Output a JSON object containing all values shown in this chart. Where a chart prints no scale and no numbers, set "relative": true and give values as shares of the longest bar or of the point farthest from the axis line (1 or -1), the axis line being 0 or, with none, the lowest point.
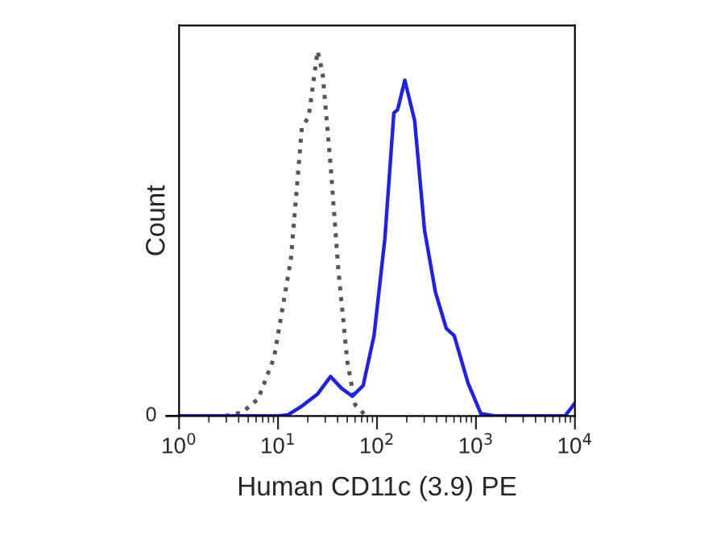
{
  "chart_data": {
    "type": "line",
    "relative": true,
    "xlabel": "Human CD11c (3.9) PE",
    "ylabel": "Count",
    "log": "x",
    "xlim": [
      1,
      10000
    ],
    "xticks": [
      {
        "value": 1,
        "label": "10$^{0}$"
      },
      {
        "value": 10,
        "label": "10$^{1}$"
      },
      {
        "value": 100,
        "label": "10$^{2}$"
      },
      {
        "value": 1000,
        "label": "10$^{3}$"
      },
      {
        "value": 10000,
        "label": "10$^{4}$"
      }
    ],
    "annotations": [
      {
        "text": "0",
        "x": 1,
        "y": 0
      }
    ],
    "grid": false,
    "legend": false,
    "series": [
      {
        "color": "#555555",
        "line_style": "dotted",
        "x": [
          2.95,
          4.37,
          6.31,
          9.12,
          13.5,
          17.4,
          20.4,
          25.1,
          28.2,
          33.9,
          40.7,
          50.1,
          60.3,
          77.6
        ],
        "values": [
          0,
          0.01,
          0.047,
          0.16,
          0.43,
          0.79,
          0.82,
          1.0,
          0.94,
          0.69,
          0.4,
          0.15,
          0.03,
          0
        ]
      },
      {
        "color": "#2222dd",
        "line_style": "solid",
        "x": [
          1,
          10,
          12.6,
          17.0,
          25.1,
          33.9,
          43.7,
          56.2,
          72.4,
          93.3,
          120,
          148,
          162,
          191,
          240,
          302,
          389,
          501,
          603,
          832,
          1122,
          1549,
          7943,
          10000
        ],
        "values": [
          0,
          0,
          0.003,
          0.025,
          0.06,
          0.108,
          0.076,
          0.054,
          0.083,
          0.22,
          0.485,
          0.83,
          0.84,
          0.92,
          0.81,
          0.51,
          0.34,
          0.24,
          0.22,
          0.09,
          0.006,
          0,
          0,
          0.035
        ]
      }
    ]
  }
}
